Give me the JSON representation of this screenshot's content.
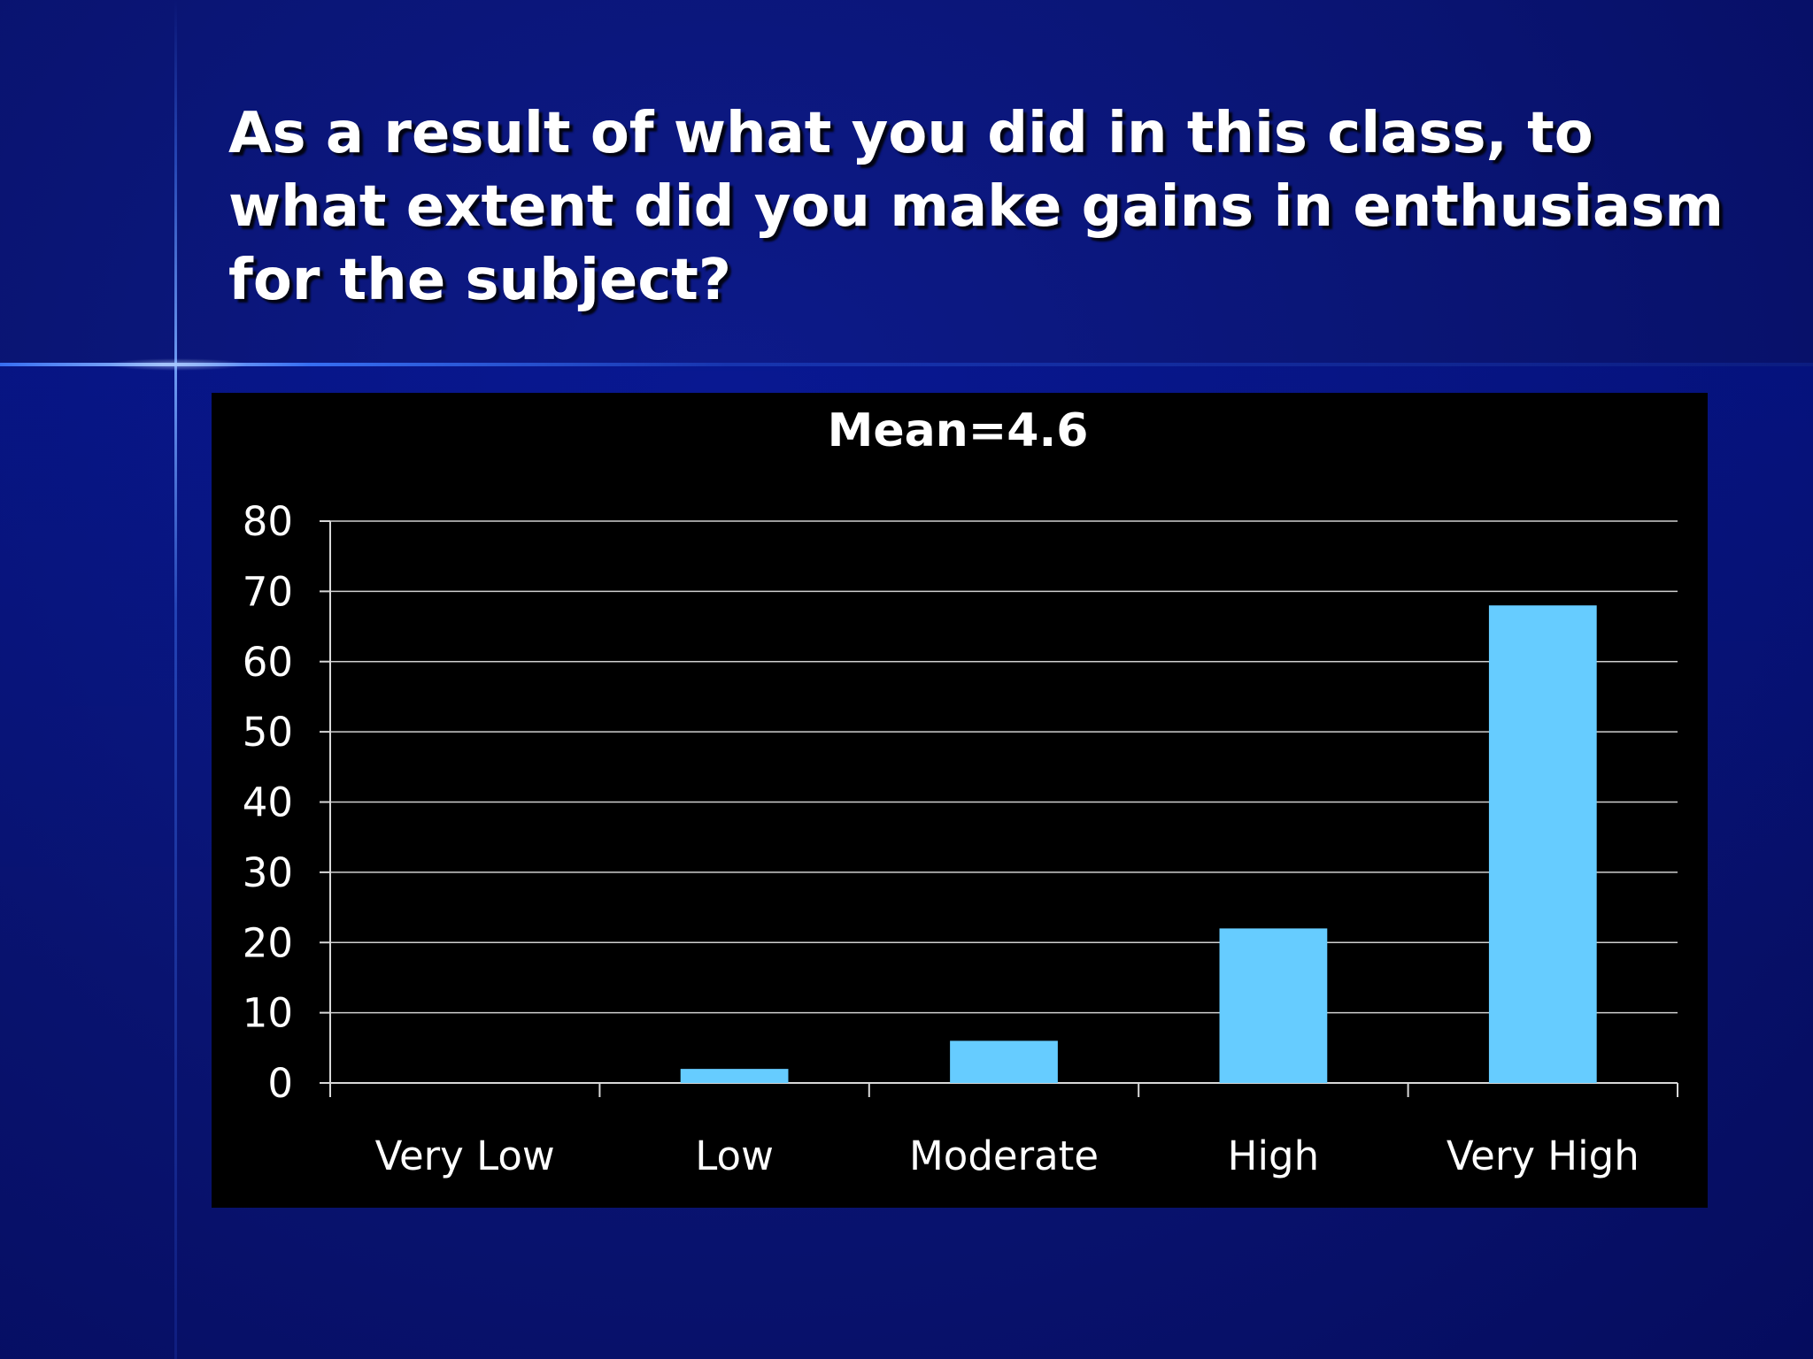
{
  "slide": {
    "title": "As a result of what you did in this class, to what extent did you make gains in enthusiasm for the subject?"
  },
  "colors": {
    "background": "#0a1575",
    "panel": "#000000",
    "bar": "#66ccff",
    "text": "#ffffff"
  },
  "chart_data": {
    "type": "bar",
    "title": "Mean=4.6",
    "xlabel": "",
    "ylabel": "",
    "categories": [
      "Very Low",
      "Low",
      "Moderate",
      "High",
      "Very High"
    ],
    "values": [
      0,
      2,
      6,
      22,
      68
    ],
    "ylim": [
      0,
      80
    ],
    "yticks": [
      0,
      10,
      20,
      30,
      40,
      50,
      60,
      70,
      80
    ],
    "grid": true,
    "legend": "none"
  }
}
